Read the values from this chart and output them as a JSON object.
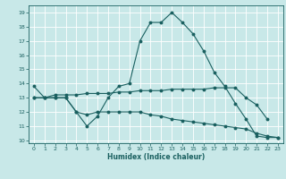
{
  "title": "",
  "xlabel": "Humidex (Indice chaleur)",
  "bg_color": "#c8e8e8",
  "line_color": "#1a6060",
  "grid_color": "#ffffff",
  "xlim": [
    -0.5,
    23.5
  ],
  "ylim": [
    9.8,
    19.5
  ],
  "yticks": [
    10,
    11,
    12,
    13,
    14,
    15,
    16,
    17,
    18,
    19
  ],
  "xticks": [
    0,
    1,
    2,
    3,
    4,
    5,
    6,
    7,
    8,
    9,
    10,
    11,
    12,
    13,
    14,
    15,
    16,
    17,
    18,
    19,
    20,
    21,
    22,
    23
  ],
  "line1_x": [
    0,
    1,
    2,
    3,
    4,
    5,
    6,
    7,
    8,
    9,
    10,
    11,
    12,
    13,
    14,
    15,
    16,
    17,
    18,
    19,
    20,
    21,
    22,
    23
  ],
  "line1_y": [
    13.8,
    13.0,
    13.0,
    13.0,
    12.0,
    11.0,
    11.7,
    13.0,
    13.8,
    14.0,
    17.0,
    18.3,
    18.3,
    19.0,
    18.3,
    17.5,
    16.3,
    14.8,
    13.8,
    12.6,
    11.5,
    10.3,
    10.2,
    10.2
  ],
  "line2_x": [
    0,
    1,
    2,
    3,
    4,
    5,
    6,
    7,
    8,
    9,
    10,
    11,
    12,
    13,
    14,
    15,
    16,
    17,
    18,
    19,
    20,
    21,
    22
  ],
  "line2_y": [
    13.0,
    13.0,
    13.2,
    13.2,
    13.2,
    13.3,
    13.3,
    13.3,
    13.4,
    13.4,
    13.5,
    13.5,
    13.5,
    13.6,
    13.6,
    13.6,
    13.6,
    13.7,
    13.7,
    13.7,
    13.0,
    12.5,
    11.5
  ],
  "line3_x": [
    0,
    1,
    2,
    3,
    4,
    5,
    6,
    7,
    8,
    9,
    10,
    11,
    12,
    13,
    14,
    15,
    16,
    17,
    18,
    19,
    20,
    21,
    22,
    23
  ],
  "line3_y": [
    13.0,
    13.0,
    13.0,
    13.0,
    12.0,
    11.8,
    12.0,
    12.0,
    12.0,
    12.0,
    12.0,
    11.8,
    11.7,
    11.5,
    11.4,
    11.3,
    11.2,
    11.1,
    11.0,
    10.9,
    10.8,
    10.5,
    10.3,
    10.2
  ]
}
